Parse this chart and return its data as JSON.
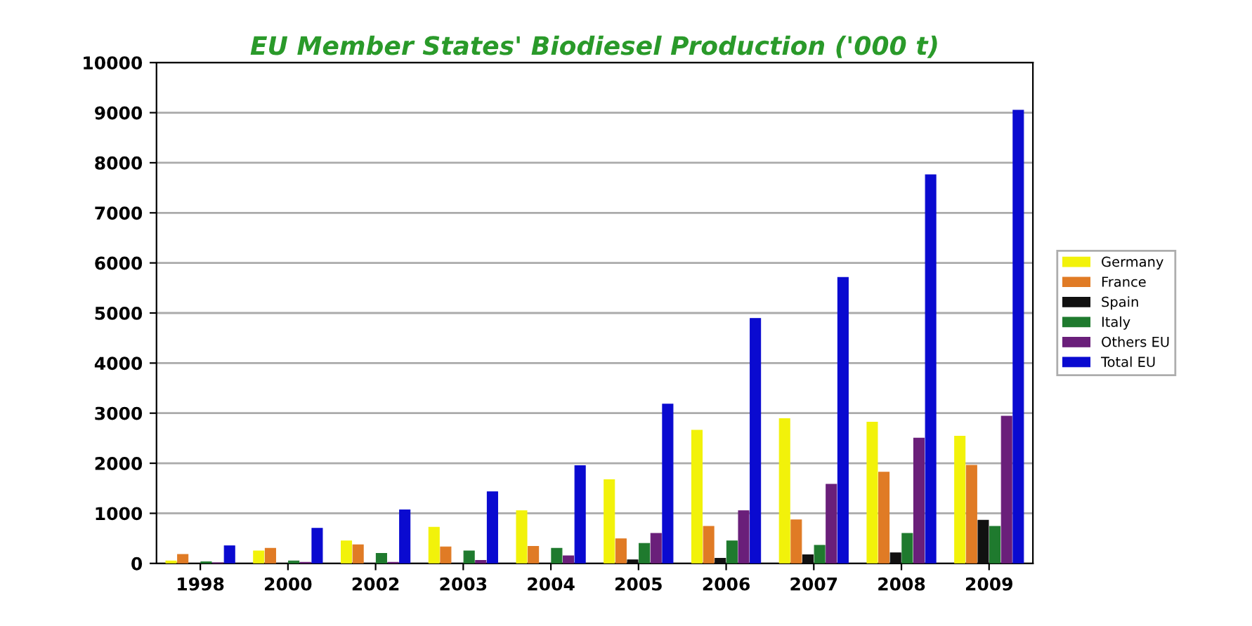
{
  "chart_data": {
    "type": "bar",
    "title": "EU Member States' Biodiesel Production ('000 t)",
    "categories": [
      "1998",
      "2000",
      "2002",
      "2003",
      "2004",
      "2005",
      "2006",
      "2007",
      "2008",
      "2009"
    ],
    "series": [
      {
        "name": "Germany",
        "color": "#f2f20a",
        "values": [
          50,
          250,
          450,
          720,
          1050,
          1670,
          2660,
          2890,
          2820,
          2540
        ]
      },
      {
        "name": "France",
        "color": "#e07b25",
        "values": [
          180,
          300,
          370,
          330,
          340,
          490,
          740,
          870,
          1820,
          1960
        ]
      },
      {
        "name": "Spain",
        "color": "#111111",
        "values": [
          0,
          0,
          0,
          null,
          null,
          70,
          100,
          170,
          210,
          860
        ]
      },
      {
        "name": "Italy",
        "color": "#1f7a2e",
        "values": [
          30,
          50,
          200,
          250,
          300,
          400,
          450,
          360,
          600,
          740
        ]
      },
      {
        "name": "Others EU",
        "color": "#6a1f7a",
        "values": [
          10,
          20,
          20,
          60,
          150,
          600,
          1050,
          1580,
          2500,
          2940
        ]
      },
      {
        "name": "Total EU",
        "color": "#0a0ad0",
        "values": [
          350,
          700,
          1070,
          1430,
          1950,
          3180,
          4890,
          5710,
          7760,
          9050
        ]
      }
    ],
    "ylim": [
      0,
      10000
    ],
    "yticks": [
      0,
      1000,
      2000,
      3000,
      4000,
      5000,
      6000,
      7000,
      8000,
      9000,
      10000
    ],
    "grid": "y",
    "legend": "right"
  }
}
